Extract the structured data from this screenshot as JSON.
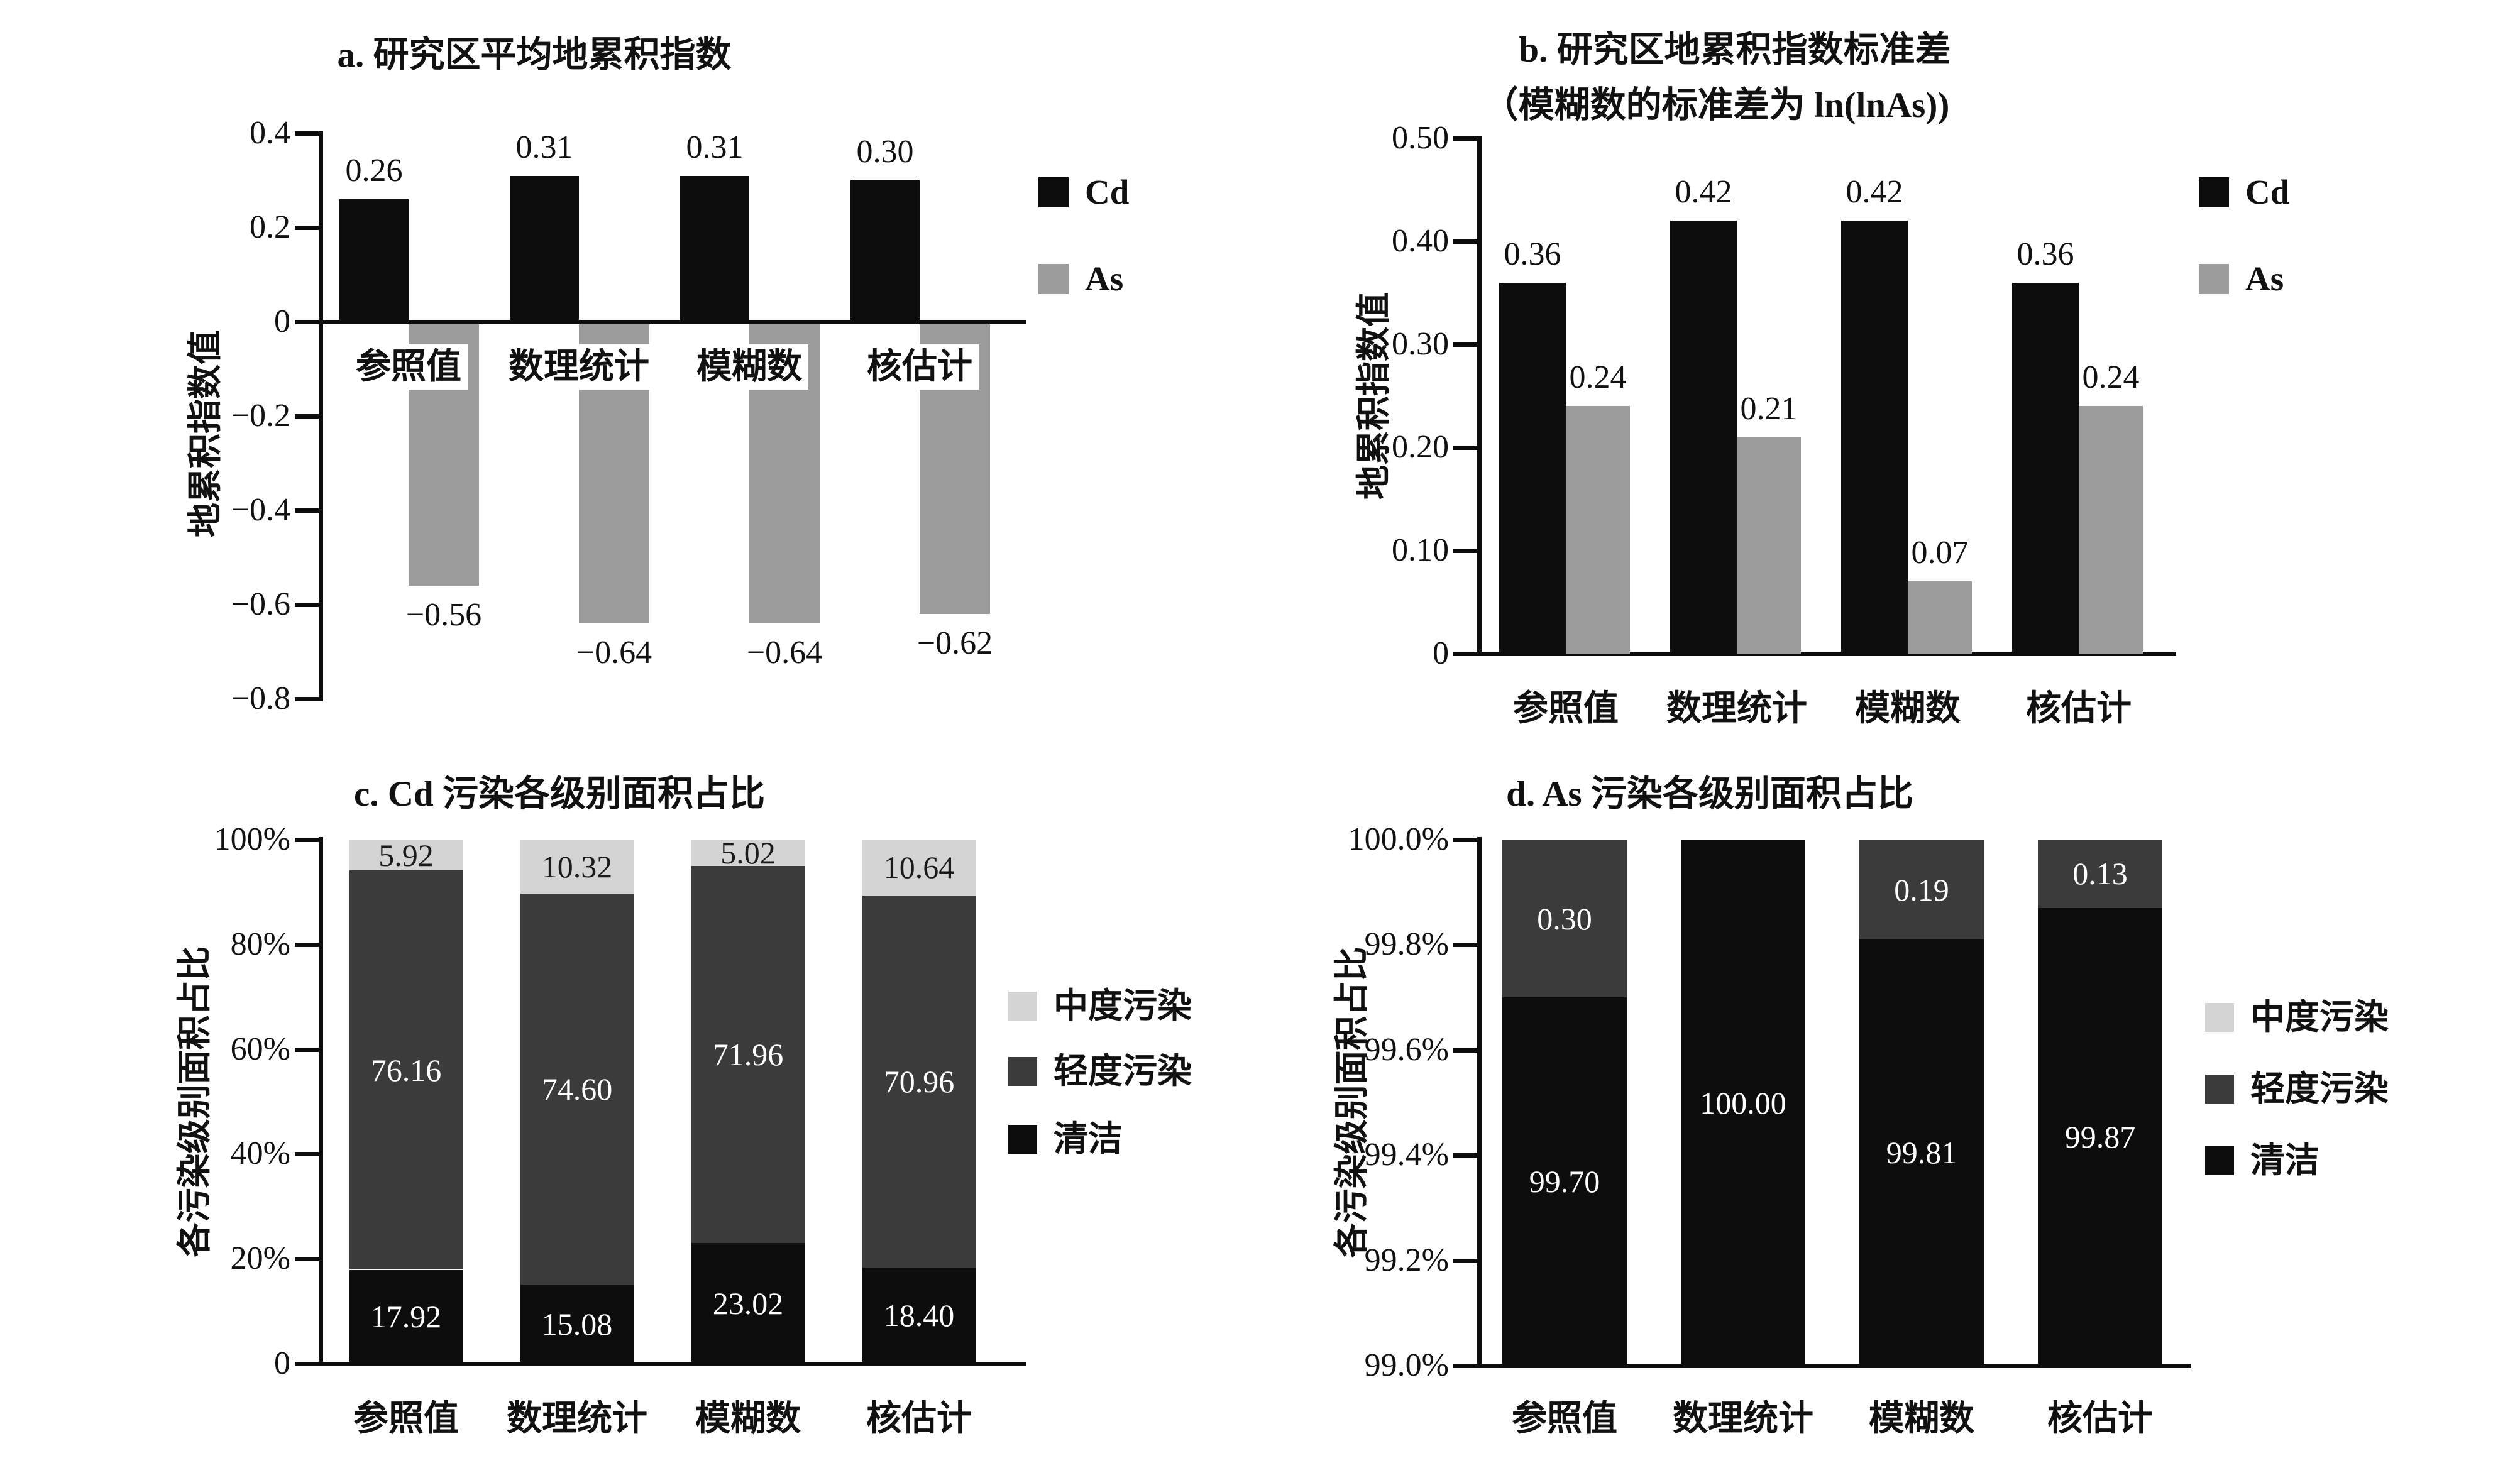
{
  "figure": {
    "background": "#ffffff"
  },
  "chart_data": [
    {
      "id": "a",
      "type": "bar",
      "title": "a. 研究区平均地累积指数",
      "ylabel": "地累积指数值",
      "categories": [
        "参照值",
        "数理统计",
        "模糊数",
        "核估计"
      ],
      "ylim": [
        -0.8,
        0.4
      ],
      "grid": false,
      "legend_position": "right",
      "yticks": [
        {
          "v": 0.4,
          "label": "0.4"
        },
        {
          "v": 0.2,
          "label": "0.2"
        },
        {
          "v": 0,
          "label": "0"
        },
        {
          "v": -0.2,
          "label": "−0.2"
        },
        {
          "v": -0.4,
          "label": "−0.4"
        },
        {
          "v": -0.6,
          "label": "−0.6"
        },
        {
          "v": -0.8,
          "label": "−0.8"
        }
      ],
      "series": [
        {
          "name": "Cd",
          "color": "#0d0d0d",
          "values": [
            0.26,
            0.31,
            0.31,
            0.3
          ],
          "labels": [
            "0.26",
            "0.31",
            "0.31",
            "0.30"
          ]
        },
        {
          "name": "As",
          "color": "#9c9c9c",
          "values": [
            -0.56,
            -0.64,
            -0.64,
            -0.62
          ],
          "labels": [
            "−0.56",
            "−0.64",
            "−0.64",
            "−0.62"
          ]
        }
      ],
      "legend": [
        {
          "label": "Cd",
          "color": "#0d0d0d"
        },
        {
          "label": "As",
          "color": "#9c9c9c"
        }
      ]
    },
    {
      "id": "b",
      "type": "bar",
      "title": "b. 研究区地累积指数标准差",
      "subtitle": "（模糊数的标准差为 ln(lnAs))",
      "ylabel": "地累积指数值",
      "categories": [
        "参照值",
        "数理统计",
        "模糊数",
        "核估计"
      ],
      "ylim": [
        0,
        0.5
      ],
      "grid": false,
      "legend_position": "right",
      "yticks": [
        {
          "v": 0.5,
          "label": "0.50"
        },
        {
          "v": 0.4,
          "label": "0.40"
        },
        {
          "v": 0.3,
          "label": "0.30"
        },
        {
          "v": 0.2,
          "label": "0.20"
        },
        {
          "v": 0.1,
          "label": "0.10"
        },
        {
          "v": 0,
          "label": "0"
        }
      ],
      "series": [
        {
          "name": "Cd",
          "color": "#0d0d0d",
          "values": [
            0.36,
            0.42,
            0.42,
            0.36
          ],
          "labels": [
            "0.36",
            "0.42",
            "0.42",
            "0.36"
          ]
        },
        {
          "name": "As",
          "color": "#9c9c9c",
          "values": [
            0.24,
            0.21,
            0.07,
            0.24
          ],
          "labels": [
            "0.24",
            "0.21",
            "0.07",
            "0.24"
          ]
        }
      ],
      "legend": [
        {
          "label": "Cd",
          "color": "#0d0d0d"
        },
        {
          "label": "As",
          "color": "#9c9c9c"
        }
      ]
    },
    {
      "id": "c",
      "type": "stacked_bar",
      "title": "c. Cd 污染各级别面积占比",
      "ylabel": "各污染级别面积占比",
      "categories": [
        "参照值",
        "数理统计",
        "模糊数",
        "核估计"
      ],
      "ylim": [
        0,
        100
      ],
      "grid": false,
      "legend_position": "right",
      "yticks": [
        {
          "v": 100,
          "label": "100%"
        },
        {
          "v": 80,
          "label": "80%"
        },
        {
          "v": 60,
          "label": "60%"
        },
        {
          "v": 40,
          "label": "40%"
        },
        {
          "v": 20,
          "label": "20%"
        },
        {
          "v": 0,
          "label": "0"
        }
      ],
      "series": [
        {
          "name": "清洁",
          "color": "#0d0d0d",
          "text_color": "#ffffff",
          "values": [
            17.92,
            15.08,
            23.02,
            18.4
          ],
          "labels": [
            "17.92",
            "15.08",
            "23.02",
            "18.40"
          ]
        },
        {
          "name": "轻度污染",
          "color": "#3b3b3b",
          "text_color": "#ffffff",
          "values": [
            76.16,
            74.6,
            71.96,
            70.96
          ],
          "labels": [
            "76.16",
            "74.60",
            "71.96",
            "70.96"
          ]
        },
        {
          "name": "中度污染",
          "color": "#d4d4d4",
          "text_color": "#1a1a1a",
          "values": [
            5.92,
            10.32,
            5.02,
            10.64
          ],
          "labels": [
            "5.92",
            "10.32",
            "5.02",
            "10.64"
          ]
        }
      ],
      "legend": [
        {
          "label": "中度污染",
          "color": "#d4d4d4"
        },
        {
          "label": "轻度污染",
          "color": "#3b3b3b"
        },
        {
          "label": "清洁",
          "color": "#0d0d0d"
        }
      ]
    },
    {
      "id": "d",
      "type": "stacked_bar",
      "title": "d. As 污染各级别面积占比",
      "ylabel": "各污染级别面积占比",
      "categories": [
        "参照值",
        "数理统计",
        "模糊数",
        "核估计"
      ],
      "ylim": [
        99.0,
        100.0
      ],
      "grid": false,
      "legend_position": "right",
      "yticks": [
        {
          "v": 100.0,
          "label": "100.0%"
        },
        {
          "v": 99.8,
          "label": "99.8%"
        },
        {
          "v": 99.6,
          "label": "99.6%"
        },
        {
          "v": 99.4,
          "label": "99.4%"
        },
        {
          "v": 99.2,
          "label": "99.2%"
        },
        {
          "v": 99.0,
          "label": "99.0%"
        }
      ],
      "series": [
        {
          "name": "清洁",
          "color": "#0d0d0d",
          "text_color": "#ffffff",
          "values": [
            99.7,
            100.0,
            99.81,
            99.87
          ],
          "labels": [
            "99.70",
            "100.00",
            "99.81",
            "99.87"
          ]
        },
        {
          "name": "轻度污染",
          "color": "#3b3b3b",
          "text_color": "#ffffff",
          "values": [
            0.3,
            0,
            0.19,
            0.13
          ],
          "labels": [
            "0.30",
            "",
            "0.19",
            "0.13"
          ]
        },
        {
          "name": "中度污染",
          "color": "#d4d4d4",
          "text_color": "#1a1a1a",
          "values": [
            0,
            0,
            0,
            0
          ],
          "labels": [
            "",
            "",
            "",
            ""
          ]
        }
      ],
      "legend": [
        {
          "label": "中度污染",
          "color": "#d4d4d4"
        },
        {
          "label": "轻度污染",
          "color": "#3b3b3b"
        },
        {
          "label": "清洁",
          "color": "#0d0d0d"
        }
      ]
    }
  ]
}
